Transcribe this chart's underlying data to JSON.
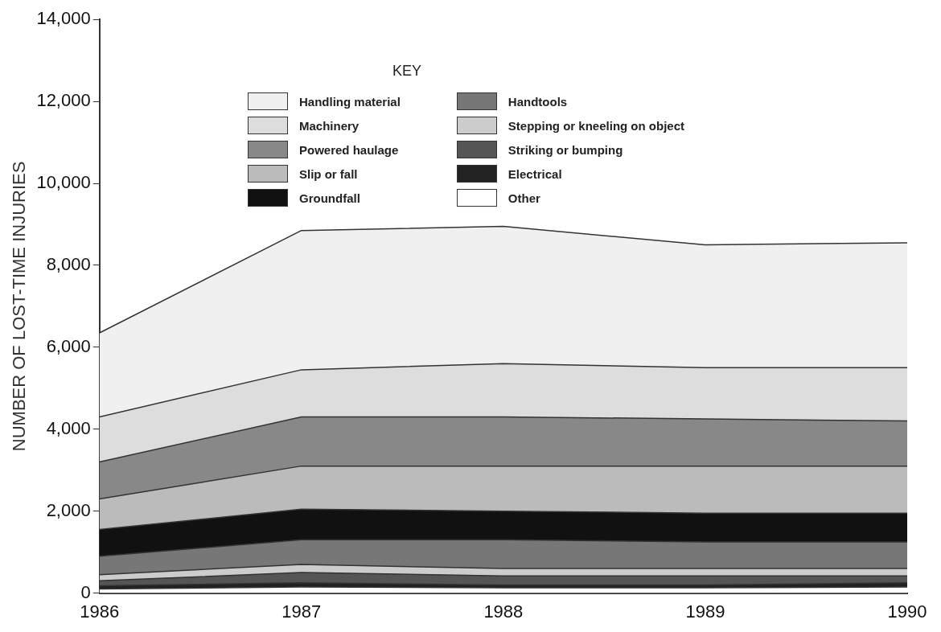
{
  "chart_data": {
    "type": "area",
    "stacked": true,
    "ylabel": "NUMBER OF LOST-TIME INJURIES",
    "legend_title": "KEY",
    "legend": "top",
    "grid": false,
    "marker": "none",
    "categories": [
      "1986",
      "1987",
      "1988",
      "1989",
      "1990"
    ],
    "ylim": [
      0,
      14000
    ],
    "yticks": [
      {
        "value": 0,
        "label": "0"
      },
      {
        "value": 2000,
        "label": "2,000"
      },
      {
        "value": 4000,
        "label": "4,000"
      },
      {
        "value": 6000,
        "label": "6,000"
      },
      {
        "value": 8000,
        "label": "8,000"
      },
      {
        "value": 10000,
        "label": "10,000"
      },
      {
        "value": 12000,
        "label": "12,000"
      },
      {
        "value": 14000,
        "label": "14,000"
      }
    ],
    "series": [
      {
        "name": "Other",
        "color": "#ffffff",
        "values": [
          100,
          150,
          130,
          130,
          150
        ]
      },
      {
        "name": "Electrical",
        "color": "#222222",
        "values": [
          80,
          100,
          70,
          70,
          100
        ]
      },
      {
        "name": "Striking or bumping",
        "color": "#555555",
        "values": [
          120,
          250,
          220,
          220,
          170
        ]
      },
      {
        "name": "Stepping or kneeling on object",
        "color": "#cccccc",
        "values": [
          150,
          200,
          180,
          180,
          180
        ]
      },
      {
        "name": "Handtools",
        "color": "#777777",
        "values": [
          450,
          600,
          700,
          650,
          650
        ]
      },
      {
        "name": "Groundfall",
        "color": "#111111",
        "values": [
          650,
          750,
          700,
          700,
          700
        ]
      },
      {
        "name": "Slip or fall",
        "color": "#bbbbbb",
        "values": [
          750,
          1050,
          1100,
          1150,
          1150
        ]
      },
      {
        "name": "Powered haulage",
        "color": "#888888",
        "values": [
          900,
          1200,
          1200,
          1150,
          1100
        ]
      },
      {
        "name": "Machinery",
        "color": "#dddddd",
        "values": [
          1100,
          1150,
          1300,
          1250,
          1300
        ]
      },
      {
        "name": "Handling material",
        "color": "#f0f0f0",
        "values": [
          2050,
          3400,
          3350,
          3000,
          3050
        ]
      }
    ]
  }
}
